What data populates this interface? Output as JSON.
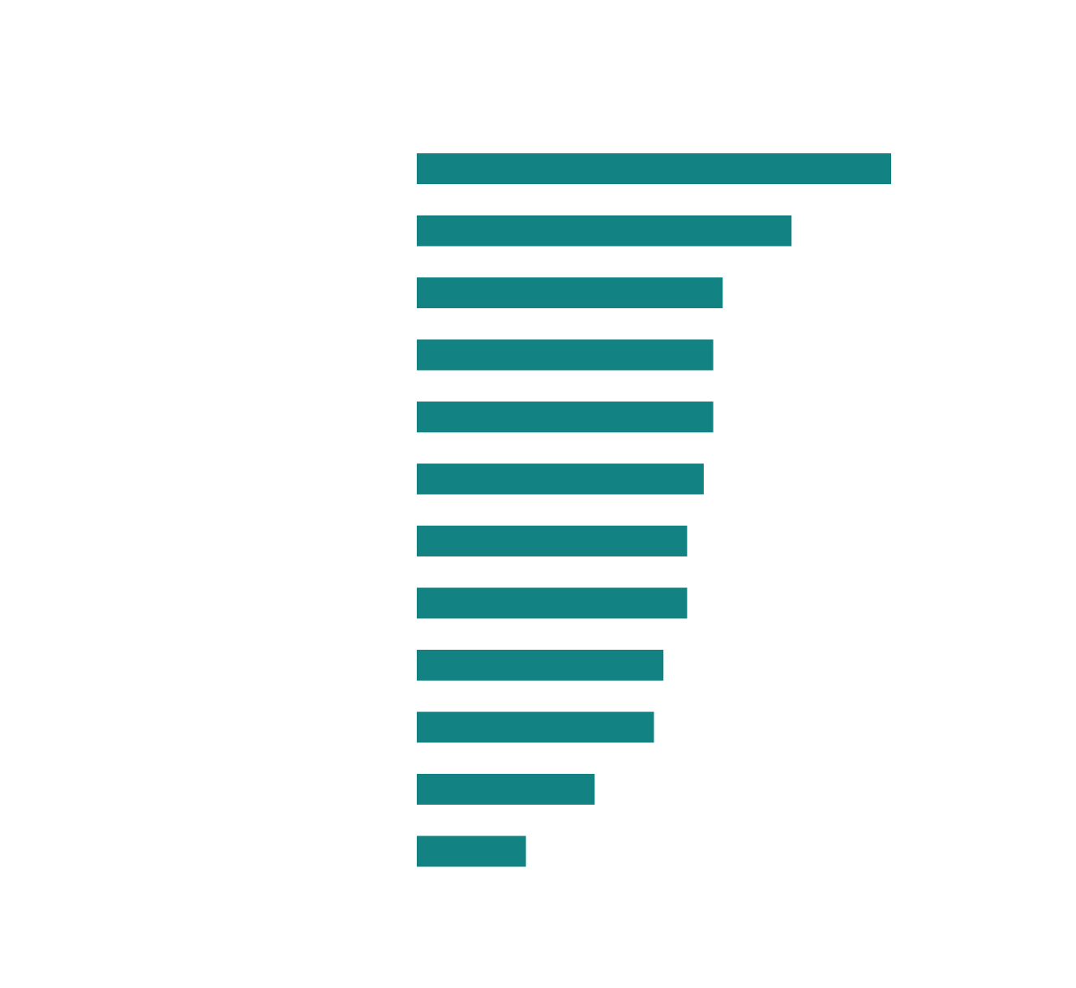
{
  "chart_data": {
    "type": "bar",
    "orientation": "horizontal",
    "bar_color": "#138282",
    "values": [
      100,
      79,
      64.5,
      62.5,
      62.5,
      60.5,
      57,
      57,
      52,
      50,
      37.5,
      23
    ]
  }
}
